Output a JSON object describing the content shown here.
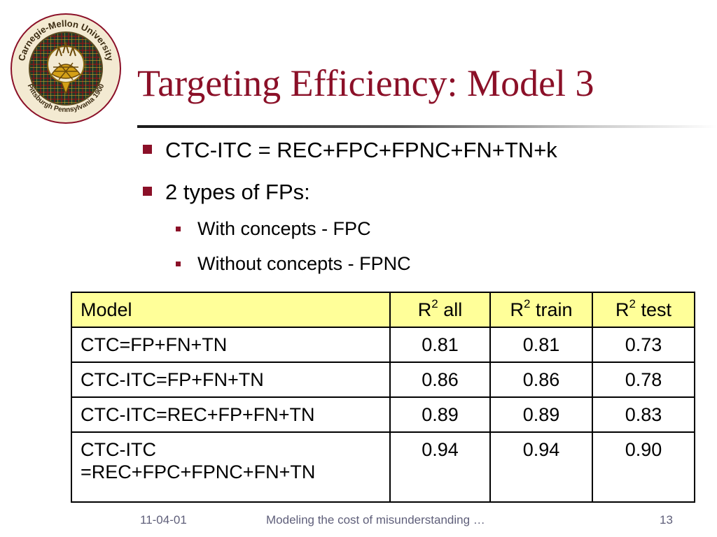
{
  "logo": {
    "top_text": "Carnegie-Mellon University",
    "bottom_text": "Pittsburgh Pennsylvania 1900",
    "colors": {
      "ring": "#8b1028",
      "tartan": "#1f3a2a",
      "thistle": "#d4a017"
    }
  },
  "slide": {
    "title": "Targeting Efficiency: Model 3",
    "bullets": [
      {
        "level": 1,
        "text": "CTC-ITC = REC+FPC+FPNC+FN+TN+k"
      },
      {
        "level": 1,
        "text": "2 types of FPs:"
      },
      {
        "level": 2,
        "text": "With concepts - FPC"
      },
      {
        "level": 2,
        "text": "Without concepts - FPNC"
      }
    ],
    "accent_color": "#8b1028"
  },
  "table": {
    "header": {
      "model": "Model",
      "r2_base": "R",
      "r2_sup": "2",
      "all": " all",
      "train": " train",
      "test": " test"
    },
    "header_bg": "#ffff99",
    "rows": [
      {
        "model": "CTC=FP+FN+TN",
        "all": "0.81",
        "train": "0.81",
        "test": "0.73"
      },
      {
        "model": "CTC-ITC=FP+FN+TN",
        "all": "0.86",
        "train": "0.86",
        "test": "0.78"
      },
      {
        "model": "CTC-ITC=REC+FP+FN+TN",
        "all": "0.89",
        "train": "0.89",
        "test": "0.83"
      },
      {
        "model_line1": "CTC-ITC",
        "model_line2": "=REC+FPC+FPNC+FN+TN",
        "all": "0.94",
        "train": "0.94",
        "test": "0.90"
      }
    ]
  },
  "footer": {
    "date": "11-04-01",
    "center": "Modeling the cost of misunderstanding …",
    "page": "13"
  }
}
